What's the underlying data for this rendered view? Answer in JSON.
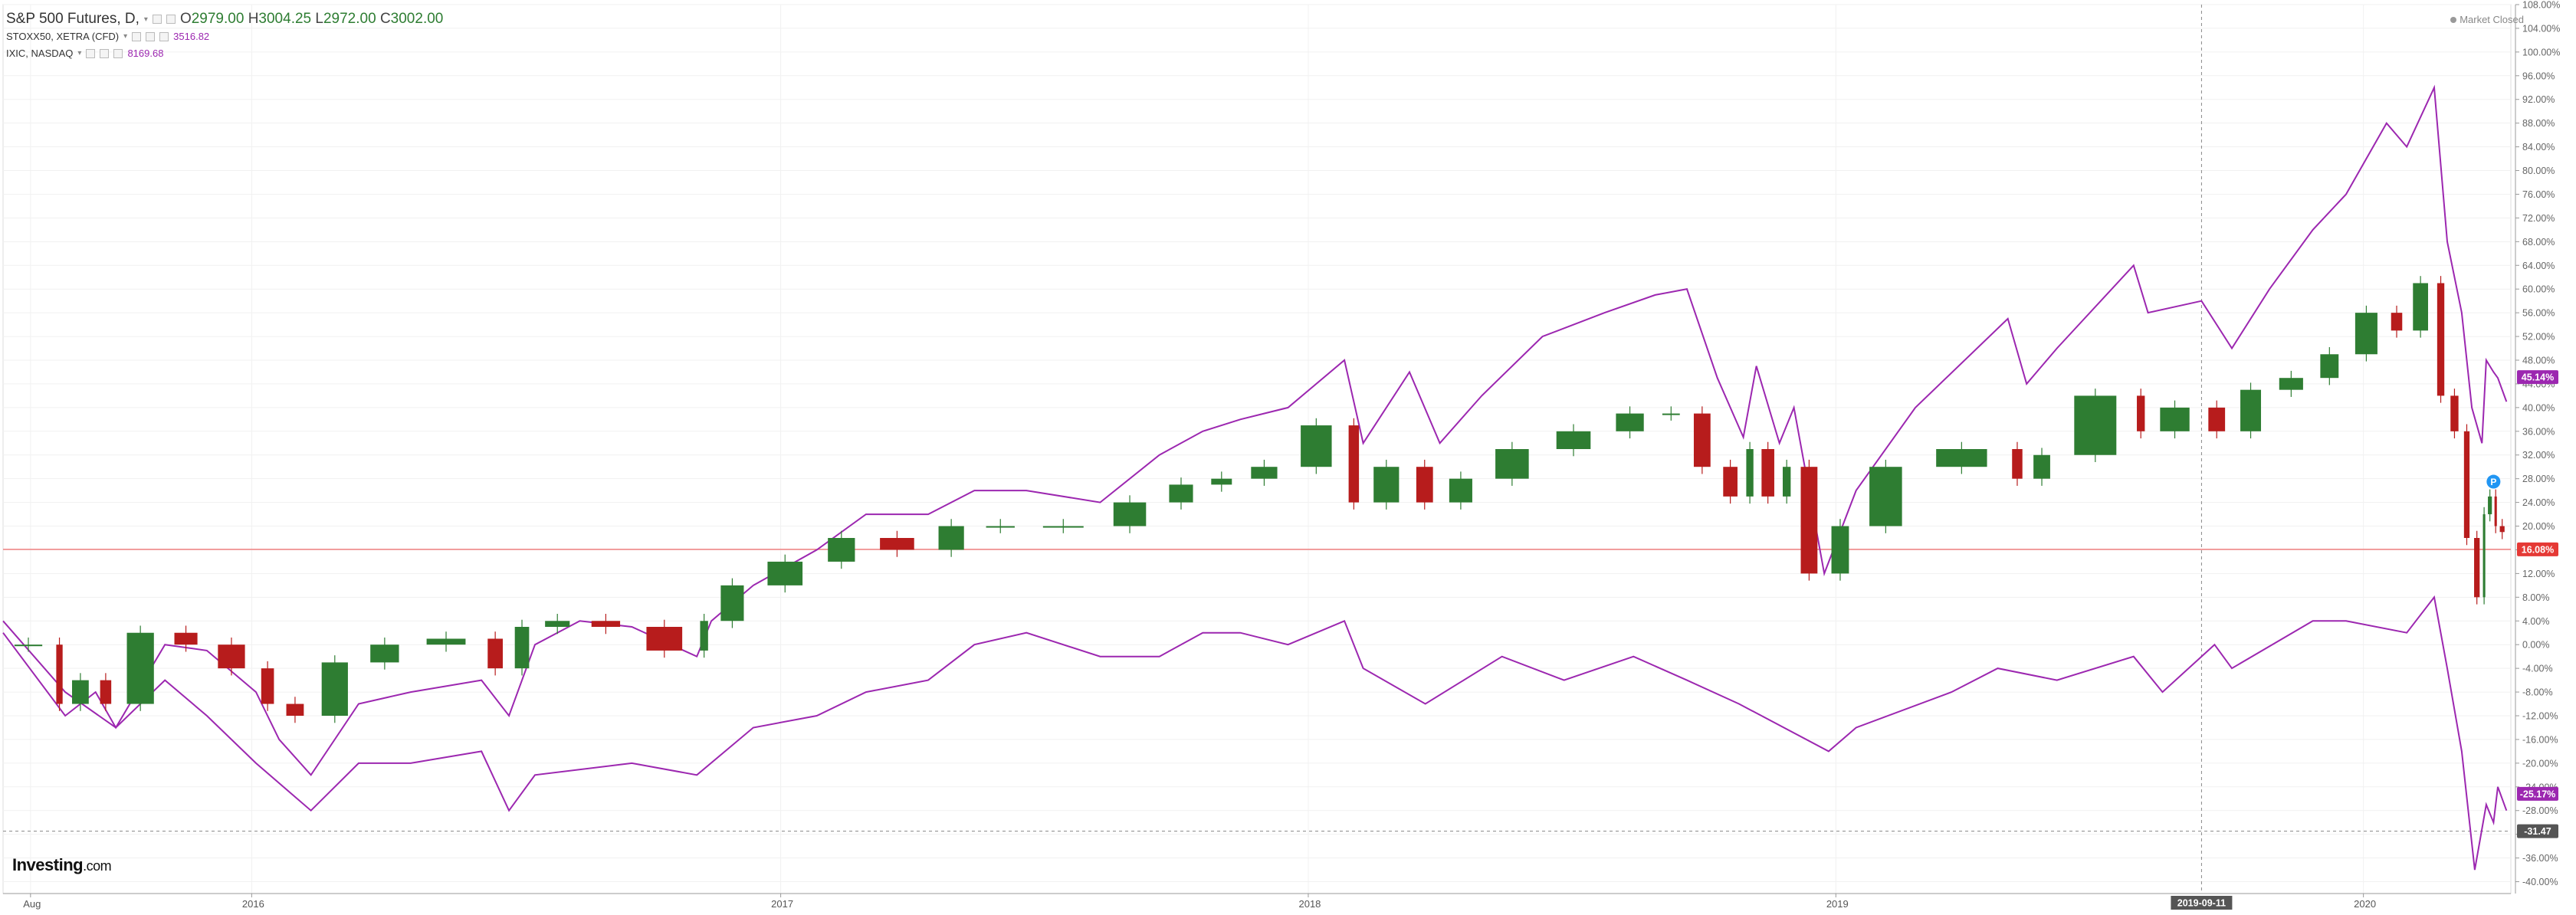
{
  "legend": {
    "main": {
      "name": "S&P 500 Futures, D,",
      "open_label": "O",
      "open": "2979.00",
      "high_label": "H",
      "high": "3004.25",
      "low_label": "L",
      "low": "2972.00",
      "close_label": "C",
      "close": "3002.00"
    },
    "compare": [
      {
        "name": "STOXX50, XETRA (CFD)",
        "value": "3516.82"
      },
      {
        "name": "IXIC, NASDAQ",
        "value": "8169.68"
      }
    ]
  },
  "market_status": "Market Closed",
  "brand": {
    "name": "Investing",
    "suffix": ".com"
  },
  "badges": {
    "nasdaq": "45.14%",
    "price_line": "16.08%",
    "stoxx": "-25.17%",
    "crosshair_y": "-31.47",
    "crosshair_x": "2019-09-11",
    "event": "P"
  },
  "colors": {
    "nasdaq": "#9c27b0",
    "stoxx": "#9c27b0",
    "up_candle": "#2e7d32",
    "down_candle": "#b71c1c",
    "price_line": "#f08080",
    "price_badge": "#e53935",
    "crosshair_badge": "#555555",
    "grid": "#f1f1f1"
  },
  "chart_data": {
    "type": "line",
    "y_unit": "%",
    "y_scale": "percent change from series start",
    "ylim": [
      -42,
      108
    ],
    "y_ticks": [
      "108.00%",
      "104.00%",
      "100.00%",
      "96.00%",
      "92.00%",
      "88.00%",
      "84.00%",
      "80.00%",
      "76.00%",
      "72.00%",
      "68.00%",
      "64.00%",
      "60.00%",
      "56.00%",
      "52.00%",
      "48.00%",
      "44.00%",
      "40.00%",
      "36.00%",
      "32.00%",
      "28.00%",
      "24.00%",
      "20.00%",
      "16.00%",
      "12.00%",
      "8.00%",
      "4.00%",
      "0.00%",
      "-4.00%",
      "-8.00%",
      "-12.00%",
      "-16.00%",
      "-20.00%",
      "-24.00%",
      "-28.00%",
      "-32.00%",
      "-36.00%",
      "-40.00%"
    ],
    "xlim": [
      "2015-07-13",
      "2020-04-12"
    ],
    "x_ticks": [
      {
        "date": "2015-08-01",
        "label": "Aug"
      },
      {
        "date": "2016-01-01",
        "label": "2016"
      },
      {
        "date": "2017-01-01",
        "label": "2017"
      },
      {
        "date": "2018-01-01",
        "label": "2018"
      },
      {
        "date": "2019-01-01",
        "label": "2019"
      },
      {
        "date": "2020-01-01",
        "label": "2020"
      }
    ],
    "price_line_value": 16.08,
    "crosshair": {
      "x": "2019-09-11",
      "y": -31.47
    },
    "event_marker": {
      "x": "2020-03-31",
      "y": 27.5
    },
    "grid": true,
    "series": [
      {
        "name": "S&P 500 Futures",
        "style": "candlestick",
        "x": [
          "2015-07-13",
          "2015-08-17",
          "2015-08-25",
          "2015-09-15",
          "2015-09-29",
          "2015-11-02",
          "2015-12-01",
          "2016-01-04",
          "2016-01-20",
          "2016-02-11",
          "2016-03-15",
          "2016-04-20",
          "2016-06-08",
          "2016-06-27",
          "2016-07-15",
          "2016-08-15",
          "2016-09-20",
          "2016-11-04",
          "2016-11-14",
          "2016-12-13",
          "2017-01-26",
          "2017-03-01",
          "2017-04-13",
          "2017-05-15",
          "2017-06-20",
          "2017-08-10",
          "2017-09-20",
          "2017-10-20",
          "2017-11-15",
          "2017-12-18",
          "2018-01-26",
          "2018-02-08",
          "2018-03-12",
          "2018-04-02",
          "2018-05-01",
          "2018-06-12",
          "2018-07-25",
          "2018-08-29",
          "2018-09-20",
          "2018-10-11",
          "2018-10-29",
          "2018-11-07",
          "2018-11-23",
          "2018-12-03",
          "2018-12-24",
          "2019-01-15",
          "2019-02-25",
          "2019-04-30",
          "2019-05-13",
          "2019-06-03",
          "2019-07-26",
          "2019-08-05",
          "2019-09-11",
          "2019-10-02",
          "2019-10-28",
          "2019-11-27",
          "2019-12-20",
          "2020-01-17",
          "2020-01-31",
          "2020-02-19",
          "2020-02-28",
          "2020-03-09",
          "2020-03-16",
          "2020-03-23",
          "2020-03-26",
          "2020-03-31",
          "2020-04-03",
          "2020-04-09"
        ],
        "values": [
          0,
          0,
          -10,
          -6,
          -10,
          2,
          0,
          -4,
          -10,
          -12,
          -3,
          0,
          1,
          -4,
          3,
          4,
          3,
          -1,
          4,
          10,
          14,
          18,
          16,
          20,
          20,
          20,
          24,
          27,
          28,
          30,
          37,
          24,
          30,
          24,
          28,
          33,
          36,
          39,
          39,
          30,
          25,
          33,
          25,
          30,
          12,
          20,
          30,
          33,
          28,
          32,
          42,
          36,
          40,
          36,
          43,
          45,
          49,
          56,
          53,
          61,
          42,
          36,
          18,
          8,
          22,
          25,
          20,
          19
        ]
      },
      {
        "name": "IXIC, NASDAQ",
        "x": [
          "2015-07-13",
          "2015-08-25",
          "2015-09-15",
          "2015-09-29",
          "2015-11-02",
          "2015-12-01",
          "2016-01-04",
          "2016-01-20",
          "2016-02-11",
          "2016-03-15",
          "2016-04-20",
          "2016-06-08",
          "2016-06-27",
          "2016-07-15",
          "2016-08-15",
          "2016-09-20",
          "2016-11-04",
          "2016-11-14",
          "2016-12-13",
          "2017-01-26",
          "2017-03-01",
          "2017-04-13",
          "2017-05-15",
          "2017-06-20",
          "2017-08-10",
          "2017-09-20",
          "2017-10-20",
          "2017-11-15",
          "2017-12-18",
          "2018-01-26",
          "2018-02-08",
          "2018-03-12",
          "2018-04-02",
          "2018-05-01",
          "2018-06-12",
          "2018-07-25",
          "2018-08-29",
          "2018-09-20",
          "2018-10-11",
          "2018-10-29",
          "2018-11-07",
          "2018-11-23",
          "2018-12-03",
          "2018-12-24",
          "2019-01-15",
          "2019-02-25",
          "2019-04-30",
          "2019-05-13",
          "2019-06-03",
          "2019-07-26",
          "2019-08-05",
          "2019-09-11",
          "2019-10-02",
          "2019-10-28",
          "2019-11-27",
          "2019-12-20",
          "2020-01-17",
          "2020-01-31",
          "2020-02-19",
          "2020-02-28",
          "2020-03-09",
          "2020-03-16",
          "2020-03-23",
          "2020-03-26",
          "2020-03-31",
          "2020-04-03",
          "2020-04-09"
        ],
        "values": [
          2,
          -12,
          -8,
          -14,
          0,
          -1,
          -8,
          -16,
          -22,
          -10,
          -8,
          -6,
          -12,
          0,
          4,
          3,
          -2,
          4,
          10,
          16,
          22,
          22,
          26,
          26,
          24,
          32,
          36,
          38,
          40,
          48,
          34,
          46,
          34,
          42,
          52,
          56,
          59,
          60,
          45,
          35,
          47,
          34,
          40,
          12,
          26,
          40,
          55,
          44,
          50,
          64,
          56,
          58,
          50,
          60,
          70,
          76,
          88,
          84,
          94,
          68,
          56,
          40,
          34,
          48,
          46,
          45,
          41
        ]
      },
      {
        "name": "STOXX50, XETRA (CFD)",
        "x": [
          "2015-07-13",
          "2015-08-25",
          "2015-09-29",
          "2015-11-02",
          "2015-12-01",
          "2016-01-04",
          "2016-02-11",
          "2016-03-15",
          "2016-04-20",
          "2016-06-08",
          "2016-06-27",
          "2016-07-15",
          "2016-09-20",
          "2016-11-04",
          "2016-12-13",
          "2017-01-26",
          "2017-03-01",
          "2017-04-13",
          "2017-05-15",
          "2017-06-20",
          "2017-08-10",
          "2017-09-20",
          "2017-10-20",
          "2017-11-15",
          "2017-12-18",
          "2018-01-26",
          "2018-02-08",
          "2018-03-23",
          "2018-05-15",
          "2018-06-27",
          "2018-08-14",
          "2018-09-20",
          "2018-10-26",
          "2018-12-27",
          "2019-01-15",
          "2019-03-22",
          "2019-04-23",
          "2019-06-03",
          "2019-07-26",
          "2019-08-15",
          "2019-09-20",
          "2019-10-02",
          "2019-11-27",
          "2019-12-20",
          "2020-01-31",
          "2020-02-19",
          "2020-02-28",
          "2020-03-09",
          "2020-03-18",
          "2020-03-26",
          "2020-03-31",
          "2020-04-03",
          "2020-04-09"
        ],
        "values": [
          4,
          -8,
          -14,
          -6,
          -12,
          -20,
          -28,
          -20,
          -20,
          -18,
          -28,
          -22,
          -20,
          -22,
          -14,
          -12,
          -8,
          -6,
          0,
          2,
          -2,
          -2,
          2,
          2,
          0,
          4,
          -4,
          -10,
          -2,
          -6,
          -2,
          -6,
          -10,
          -18,
          -14,
          -8,
          -4,
          -6,
          -2,
          -8,
          0,
          -4,
          4,
          4,
          2,
          8,
          -4,
          -18,
          -38,
          -27,
          -30,
          -24,
          -28
        ]
      }
    ]
  }
}
